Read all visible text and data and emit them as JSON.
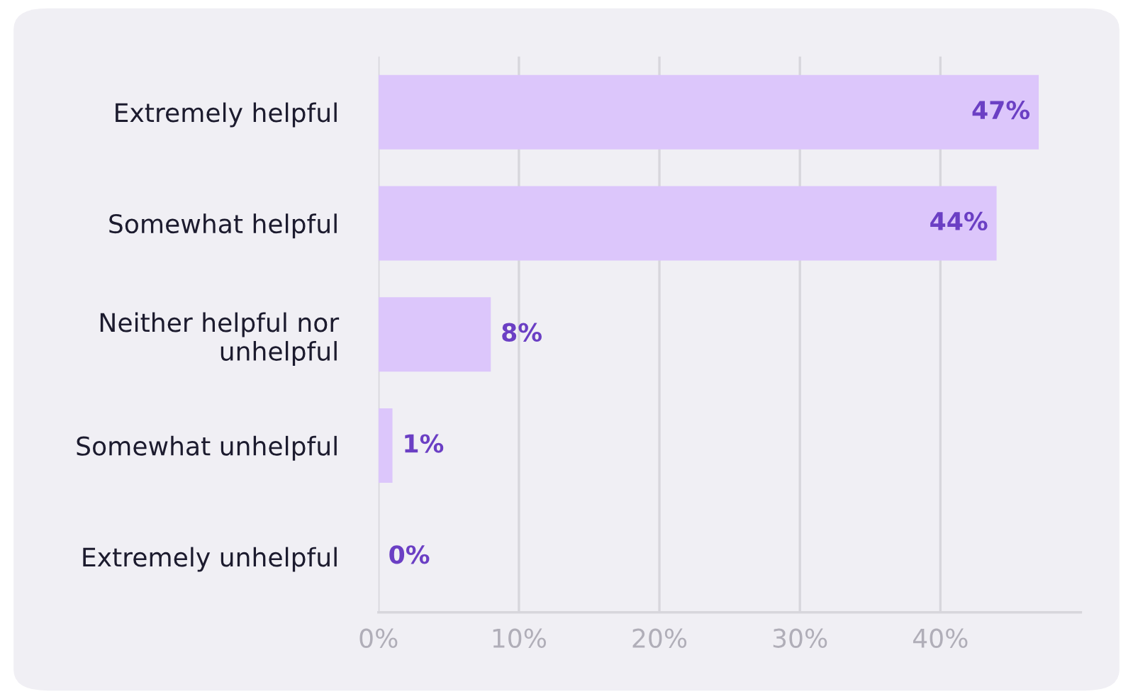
{
  "chart_data": {
    "type": "bar",
    "orientation": "horizontal",
    "categories": [
      "Extremely helpful",
      "Somewhat helpful",
      "Neither helpful nor\nunhelpful",
      "Somewhat unhelpful",
      "Extremely unhelpful"
    ],
    "values": [
      47,
      44,
      8,
      1,
      0
    ],
    "color": "#dcc6fb",
    "value_labels": [
      "47%",
      "44%",
      "8%",
      "1%",
      "0%"
    ],
    "xlim": [
      0,
      50
    ],
    "xticks": [
      {
        "value": 0,
        "label": "0%"
      },
      {
        "value": 10,
        "label": "10%"
      },
      {
        "value": 20,
        "label": "20%"
      },
      {
        "value": 30,
        "label": "30%"
      },
      {
        "value": 40,
        "label": "40%"
      }
    ],
    "grid": "x",
    "legend": false
  }
}
